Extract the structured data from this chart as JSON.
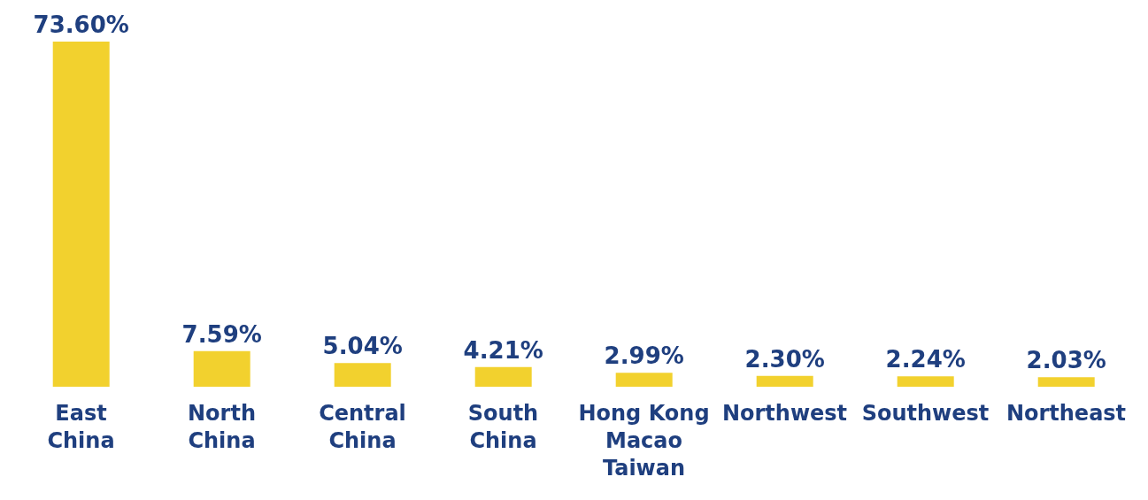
{
  "chart_data": {
    "type": "bar",
    "categories": [
      "East China",
      "North China",
      "Central China",
      "South China",
      "Hong Kong Macao Taiwan",
      "Northwest",
      "Southwest",
      "Northeast"
    ],
    "values": [
      73.6,
      7.59,
      5.04,
      4.21,
      2.99,
      2.3,
      2.24,
      2.03
    ],
    "value_labels": [
      "73.60%",
      "7.59%",
      "5.04%",
      "4.21%",
      "2.99%",
      "2.30%",
      "2.24%",
      "2.03%"
    ],
    "color": "#f2d12e"
  }
}
